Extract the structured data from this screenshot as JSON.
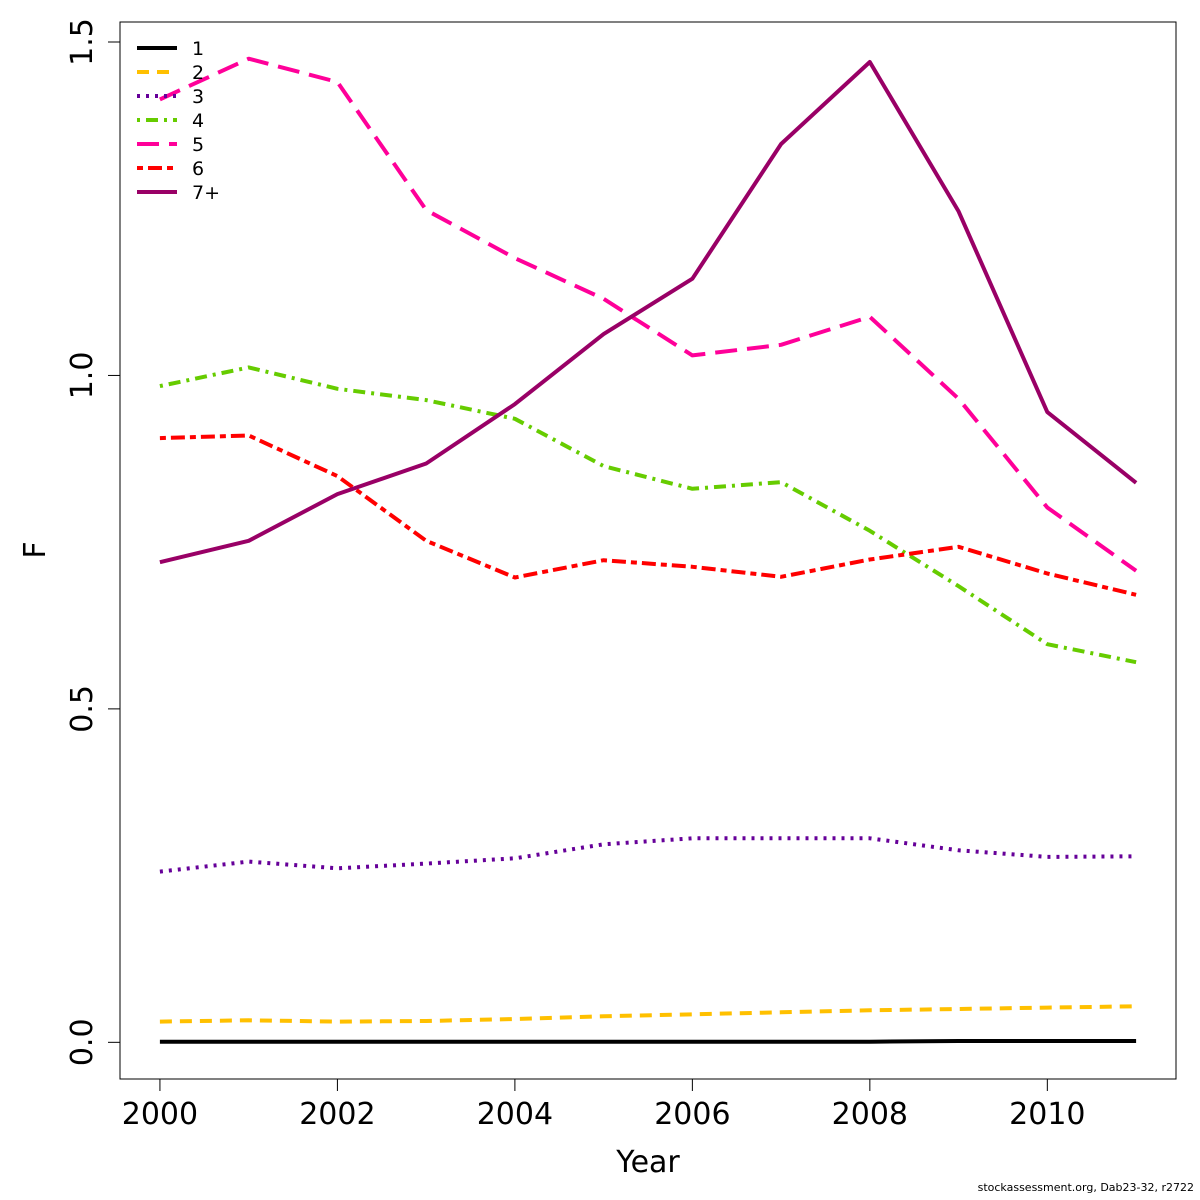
{
  "chart_data": {
    "type": "line",
    "xlabel": "Year",
    "ylabel": "F",
    "xlim": [
      1999.55,
      2011.45
    ],
    "ylim": [
      -0.055,
      1.53
    ],
    "x_ticks": [
      2000,
      2002,
      2004,
      2006,
      2008,
      2010
    ],
    "y_ticks": [
      0.0,
      0.5,
      1.0,
      1.5
    ],
    "y_tick_labels": [
      "0.0",
      "0.5",
      "1.0",
      "1.5"
    ],
    "x": [
      2000,
      2001,
      2002,
      2003,
      2004,
      2005,
      2006,
      2007,
      2008,
      2009,
      2010,
      2011
    ],
    "legend_position": "top-left",
    "grid": false,
    "series": [
      {
        "name": "1",
        "color": "#000000",
        "dash": "solid",
        "values": [
          0.001,
          0.001,
          0.001,
          0.001,
          0.001,
          0.001,
          0.001,
          0.001,
          0.001,
          0.002,
          0.002,
          0.002
        ]
      },
      {
        "name": "2",
        "color": "#FFC000",
        "dash": "dashed",
        "values": [
          0.031,
          0.033,
          0.031,
          0.032,
          0.035,
          0.039,
          0.042,
          0.045,
          0.048,
          0.05,
          0.052,
          0.054
        ]
      },
      {
        "name": "3",
        "color": "#660099",
        "dash": "dotted",
        "values": [
          0.256,
          0.271,
          0.261,
          0.268,
          0.276,
          0.297,
          0.306,
          0.306,
          0.306,
          0.288,
          0.278,
          0.279
        ]
      },
      {
        "name": "4",
        "color": "#66CC00",
        "dash": "dotdash",
        "values": [
          0.984,
          1.012,
          0.98,
          0.963,
          0.935,
          0.864,
          0.83,
          0.84,
          0.767,
          0.684,
          0.597,
          0.57
        ]
      },
      {
        "name": "5",
        "color": "#FF0099",
        "dash": "longdash",
        "values": [
          1.414,
          1.475,
          1.44,
          1.248,
          1.176,
          1.115,
          1.03,
          1.046,
          1.088,
          0.965,
          0.802,
          0.707
        ]
      },
      {
        "name": "6",
        "color": "#FF0000",
        "dash": "twodash",
        "values": [
          0.906,
          0.91,
          0.849,
          0.752,
          0.697,
          0.723,
          0.713,
          0.698,
          0.724,
          0.743,
          0.703,
          0.671
        ]
      },
      {
        "name": "7+",
        "color": "#990066",
        "dash": "solid",
        "values": [
          0.72,
          0.752,
          0.822,
          0.868,
          0.957,
          1.062,
          1.145,
          1.347,
          1.47,
          1.246,
          0.945,
          0.839
        ]
      }
    ]
  },
  "footer": "stockassessment.org, Dab23-32, r2722"
}
